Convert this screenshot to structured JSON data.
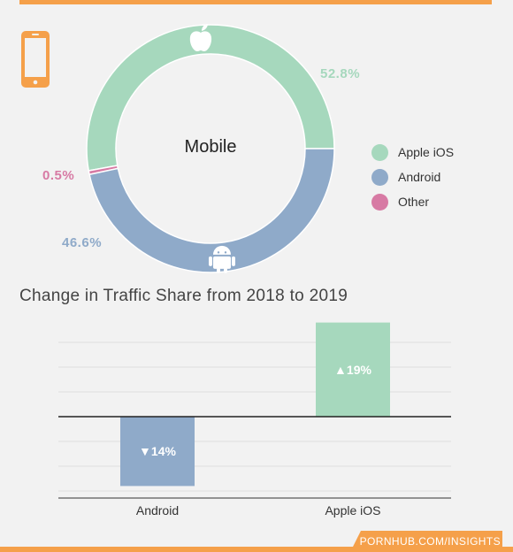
{
  "colors": {
    "accent": "#f5a04a",
    "ios": "#a6d8bd",
    "android": "#8faac9",
    "other": "#d77aa4"
  },
  "icons": {
    "device": "smartphone-icon",
    "ios": "apple-icon",
    "android": "android-icon"
  },
  "chart_data": [
    {
      "type": "pie",
      "center_label": "Mobile",
      "slices": [
        {
          "name": "Apple iOS",
          "value": 52.8,
          "label": "52.8%",
          "color": "#a6d8bd"
        },
        {
          "name": "Android",
          "value": 46.6,
          "label": "46.6%",
          "color": "#8faac9"
        },
        {
          "name": "Other",
          "value": 0.5,
          "label": "0.5%",
          "color": "#d77aa4"
        }
      ],
      "legend": [
        "Apple iOS",
        "Android",
        "Other"
      ],
      "legend_position": "right"
    },
    {
      "type": "bar",
      "title": "Change in Traffic Share from 2018 to 2019",
      "categories": [
        "Android",
        "Apple iOS"
      ],
      "values": [
        -14,
        19
      ],
      "data_labels": [
        "▼14%",
        "▲19%"
      ],
      "colors": [
        "#8faac9",
        "#a6d8bd"
      ],
      "ylim": [
        -16,
        19
      ],
      "grid": true
    }
  ],
  "footer": {
    "source": "PORNHUB.COM/INSIGHTS"
  }
}
